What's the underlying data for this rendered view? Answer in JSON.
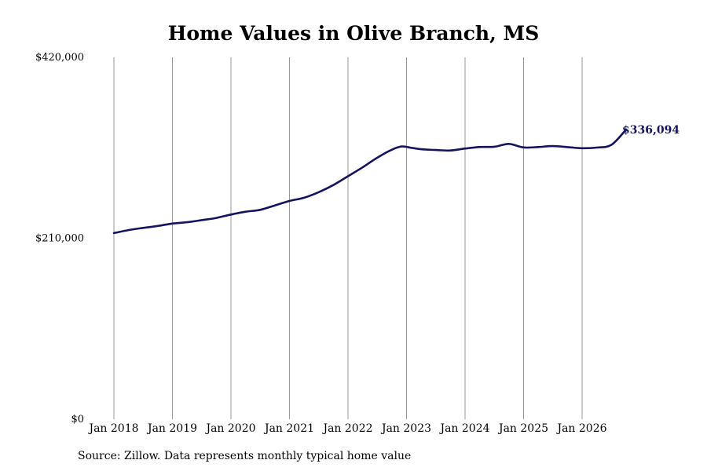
{
  "chart_data": {
    "type": "line",
    "title": "Home Values in Olive Branch, MS",
    "source_note": "Source: Zillow. Data represents monthly typical home value",
    "ylim": [
      0,
      420000
    ],
    "y_ticks": [
      {
        "value": 0,
        "label": "$0"
      },
      {
        "value": 210000,
        "label": "$210,000"
      },
      {
        "value": 420000,
        "label": "$420,000"
      }
    ],
    "x_ticks": [
      {
        "value": "2018-01",
        "label": "Jan 2018"
      },
      {
        "value": "2019-01",
        "label": "Jan 2019"
      },
      {
        "value": "2020-01",
        "label": "Jan 2020"
      },
      {
        "value": "2021-01",
        "label": "Jan 2021"
      },
      {
        "value": "2022-01",
        "label": "Jan 2022"
      },
      {
        "value": "2023-01",
        "label": "Jan 2023"
      },
      {
        "value": "2024-01",
        "label": "Jan 2024"
      },
      {
        "value": "2025-01",
        "label": "Jan 2025"
      },
      {
        "value": "2026-01",
        "label": "Jan 2026"
      }
    ],
    "grid": "vertical",
    "line_color": "#14145e",
    "end_label": "$336,094",
    "series": [
      {
        "points": [
          [
            "2018-01",
            216000
          ],
          [
            "2018-04",
            219500
          ],
          [
            "2018-07",
            222000
          ],
          [
            "2018-10",
            224300
          ],
          [
            "2019-01",
            227000
          ],
          [
            "2019-04",
            228600
          ],
          [
            "2019-07",
            231000
          ],
          [
            "2019-10",
            233600
          ],
          [
            "2020-01",
            237500
          ],
          [
            "2020-04",
            240800
          ],
          [
            "2020-07",
            243000
          ],
          [
            "2020-10",
            248100
          ],
          [
            "2021-01",
            253300
          ],
          [
            "2021-04",
            257000
          ],
          [
            "2021-07",
            263500
          ],
          [
            "2021-10",
            271800
          ],
          [
            "2022-01",
            282000
          ],
          [
            "2022-04",
            292300
          ],
          [
            "2022-07",
            303500
          ],
          [
            "2022-10",
            312800
          ],
          [
            "2022-12",
            316500
          ],
          [
            "2023-02",
            315000
          ],
          [
            "2023-04",
            313300
          ],
          [
            "2023-07",
            312400
          ],
          [
            "2023-10",
            311900
          ],
          [
            "2024-01",
            314100
          ],
          [
            "2024-04",
            315900
          ],
          [
            "2024-07",
            316200
          ],
          [
            "2024-10",
            319500
          ],
          [
            "2025-01",
            315400
          ],
          [
            "2025-04",
            315900
          ],
          [
            "2025-07",
            317000
          ],
          [
            "2025-10",
            315800
          ],
          [
            "2026-01",
            314500
          ],
          [
            "2026-04",
            315200
          ],
          [
            "2026-07",
            318400
          ],
          [
            "2026-10",
            336094
          ]
        ]
      }
    ]
  }
}
